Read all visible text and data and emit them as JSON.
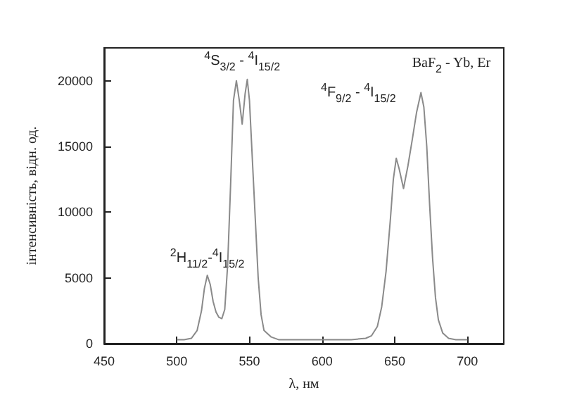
{
  "chart_data": {
    "type": "line",
    "xlabel": "λ, нм",
    "ylabel": "інтенсивність, відн. од.",
    "annotations": [
      "BaF$_{2}$ - Yb, Er",
      {
        "text": "$^{4}$S$_{3/2}$ - $^{4}$I$_{15/2}$",
        "x": 545,
        "y": 20200
      },
      "$^{4}$F$_{9/2}$ - $^{4}$I$_{15/2}$",
      {
        "text": "$^{2}$H$_{11/2}$-$^{4}$I$_{15/2}$",
        "x": 521,
        "y": 5200
      }
    ],
    "x": [
      500,
      505,
      510,
      514,
      517,
      519,
      521,
      523,
      525,
      527,
      529,
      531,
      533,
      535,
      537,
      539,
      541,
      543,
      545,
      547,
      548.5,
      550,
      552,
      554,
      556,
      558,
      560,
      565,
      570,
      580,
      590,
      600,
      610,
      620,
      630,
      634,
      638,
      641,
      644,
      647,
      649,
      651,
      653,
      656,
      659,
      662,
      665,
      668,
      670,
      672,
      674,
      676,
      678,
      680,
      683,
      687,
      692,
      700
    ],
    "series": [
      {
        "color": "#8a8a8a",
        "values": [
          300,
          300,
          400,
          1000,
          2500,
          4200,
          5200,
          4500,
          3200,
          2400,
          2000,
          1900,
          2600,
          6000,
          12000,
          18500,
          20000,
          18500,
          16700,
          19000,
          20100,
          18500,
          14000,
          9500,
          5000,
          2200,
          1000,
          500,
          300,
          300,
          300,
          300,
          300,
          300,
          400,
          600,
          1300,
          2800,
          5500,
          9500,
          12500,
          14100,
          13300,
          11800,
          13500,
          15500,
          17600,
          19100,
          18000,
          15000,
          10500,
          6500,
          3500,
          1800,
          800,
          400,
          300,
          300
        ]
      }
    ],
    "xlim": [
      450,
      725
    ],
    "xticks": [
      450,
      500,
      550,
      600,
      650,
      700
    ],
    "ylim": [
      0,
      22500
    ],
    "yticks": [
      0,
      5000,
      10000,
      15000,
      20000
    ],
    "marker": "none",
    "line_style": "solid",
    "grid": false
  }
}
